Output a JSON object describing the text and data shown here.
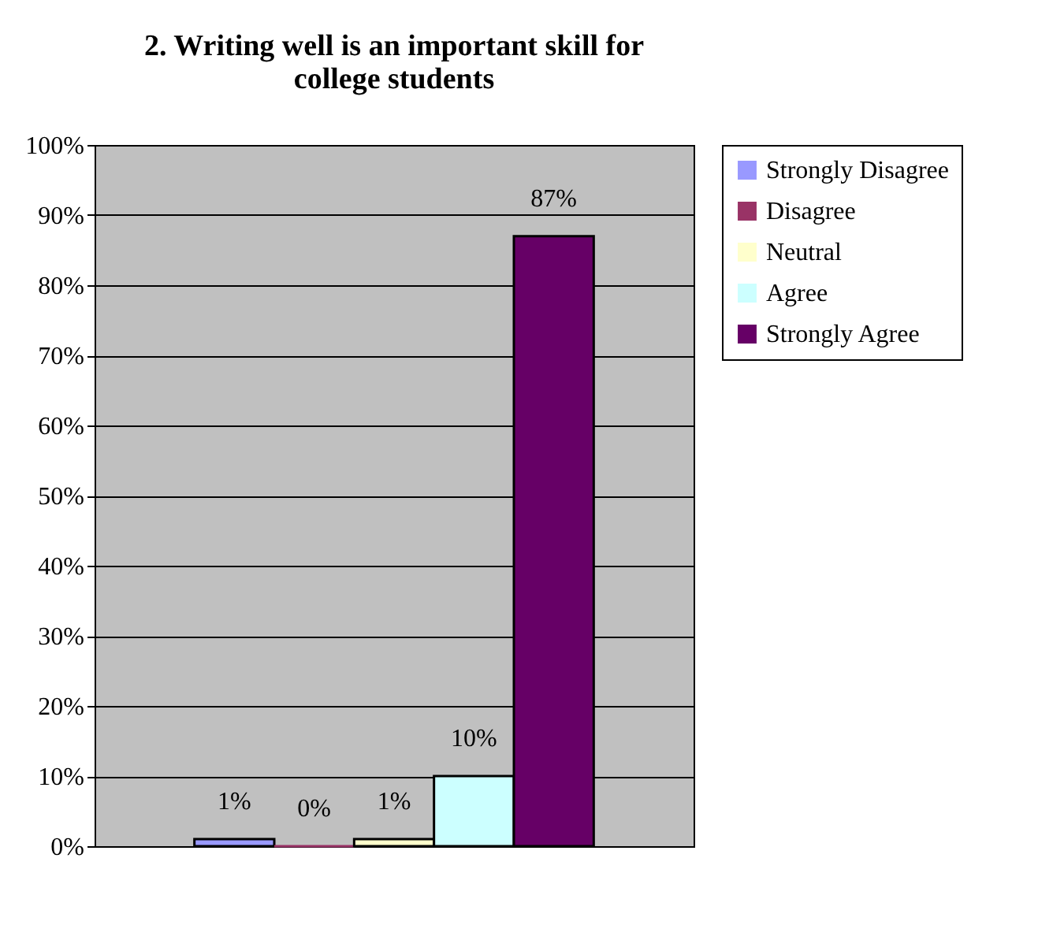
{
  "chart_data": {
    "type": "bar",
    "title": "2. Writing well is an important skill for college students",
    "categories": [
      null
    ],
    "series": [
      {
        "name": "Strongly Disagree",
        "color": "#9999ff",
        "values": [
          1
        ],
        "value_labels": [
          "1%"
        ]
      },
      {
        "name": "Disagree",
        "color": "#993366",
        "values": [
          0
        ],
        "value_labels": [
          "0%"
        ]
      },
      {
        "name": "Neutral",
        "color": "#ffffcc",
        "values": [
          1
        ],
        "value_labels": [
          "1%"
        ]
      },
      {
        "name": "Agree",
        "color": "#ccffff",
        "values": [
          10
        ],
        "value_labels": [
          "10%"
        ]
      },
      {
        "name": "Strongly Agree",
        "color": "#660066",
        "values": [
          87
        ],
        "value_labels": [
          "87%"
        ]
      }
    ],
    "ylim": [
      0,
      100
    ],
    "yticks": [
      {
        "value": 0,
        "label": "0%"
      },
      {
        "value": 10,
        "label": "10%"
      },
      {
        "value": 20,
        "label": "20%"
      },
      {
        "value": 30,
        "label": "30%"
      },
      {
        "value": 40,
        "label": "40%"
      },
      {
        "value": 50,
        "label": "50%"
      },
      {
        "value": 60,
        "label": "60%"
      },
      {
        "value": 70,
        "label": "70%"
      },
      {
        "value": 80,
        "label": "80%"
      },
      {
        "value": 90,
        "label": "90%"
      },
      {
        "value": 100,
        "label": "100%"
      }
    ],
    "grid": "y",
    "legend": "right"
  }
}
